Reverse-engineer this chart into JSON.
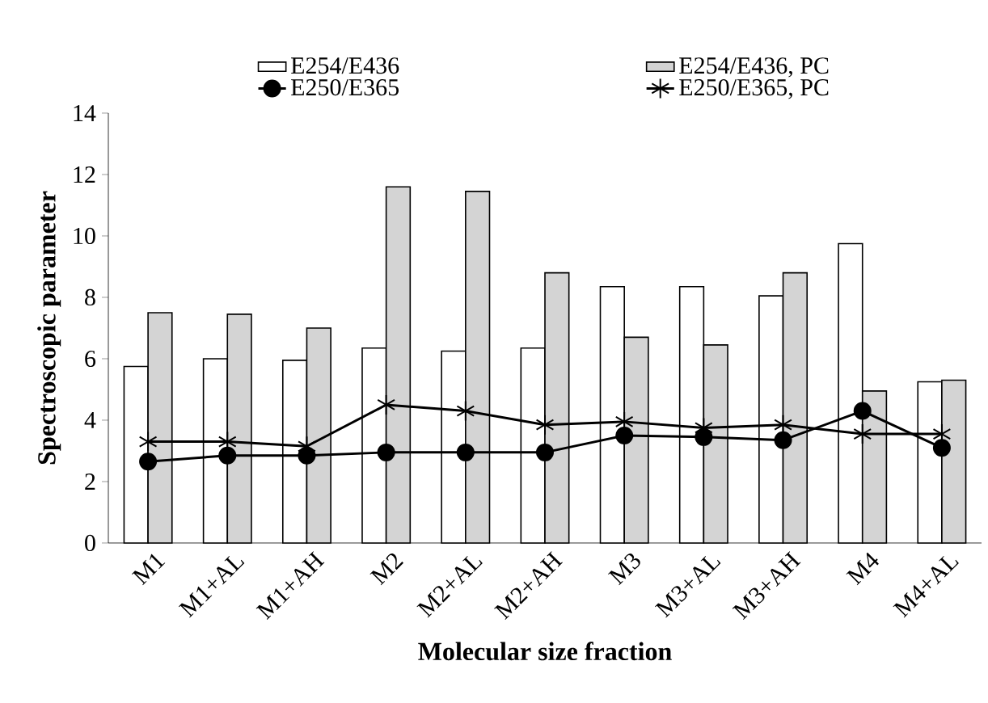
{
  "chart_data": {
    "type": "bar",
    "xlabel": "Molecular size fraction",
    "ylabel": "Spectroscopic  parameter",
    "categories": [
      "M1",
      "M1+AL",
      "M1+AH",
      "M2",
      "M2+AL",
      "M2+AH",
      "M3",
      "M3+AL",
      "M3+AH",
      "M4",
      "M4+AL"
    ],
    "series": [
      {
        "name": "E254/E436",
        "color": "#ffffff",
        "values": [
          5.75,
          6.0,
          5.95,
          6.35,
          6.25,
          6.35,
          8.35,
          8.35,
          8.05,
          9.75,
          5.25
        ]
      },
      {
        "name": "E254/E436, PC",
        "color": "#d4d4d4",
        "values": [
          7.5,
          7.45,
          7.0,
          11.6,
          11.45,
          8.8,
          6.7,
          6.45,
          8.8,
          4.95,
          5.3
        ]
      },
      {
        "name": "E250/E365",
        "type": "line",
        "color": "#000000",
        "marker": "circle",
        "values": [
          2.65,
          2.85,
          2.85,
          2.95,
          2.95,
          2.95,
          3.5,
          3.45,
          3.35,
          4.3,
          3.1
        ]
      },
      {
        "name": "E250/E365, PC",
        "type": "line",
        "color": "#000000",
        "marker": "cross",
        "values": [
          3.3,
          3.3,
          3.15,
          4.5,
          4.3,
          3.85,
          3.95,
          3.75,
          3.85,
          3.55,
          3.55
        ]
      }
    ],
    "ylim": [
      0,
      14
    ],
    "yticks": [
      0,
      2,
      4,
      6,
      8,
      10,
      12,
      14
    ],
    "grid": false,
    "legend": "top",
    "line_style": "solid"
  }
}
